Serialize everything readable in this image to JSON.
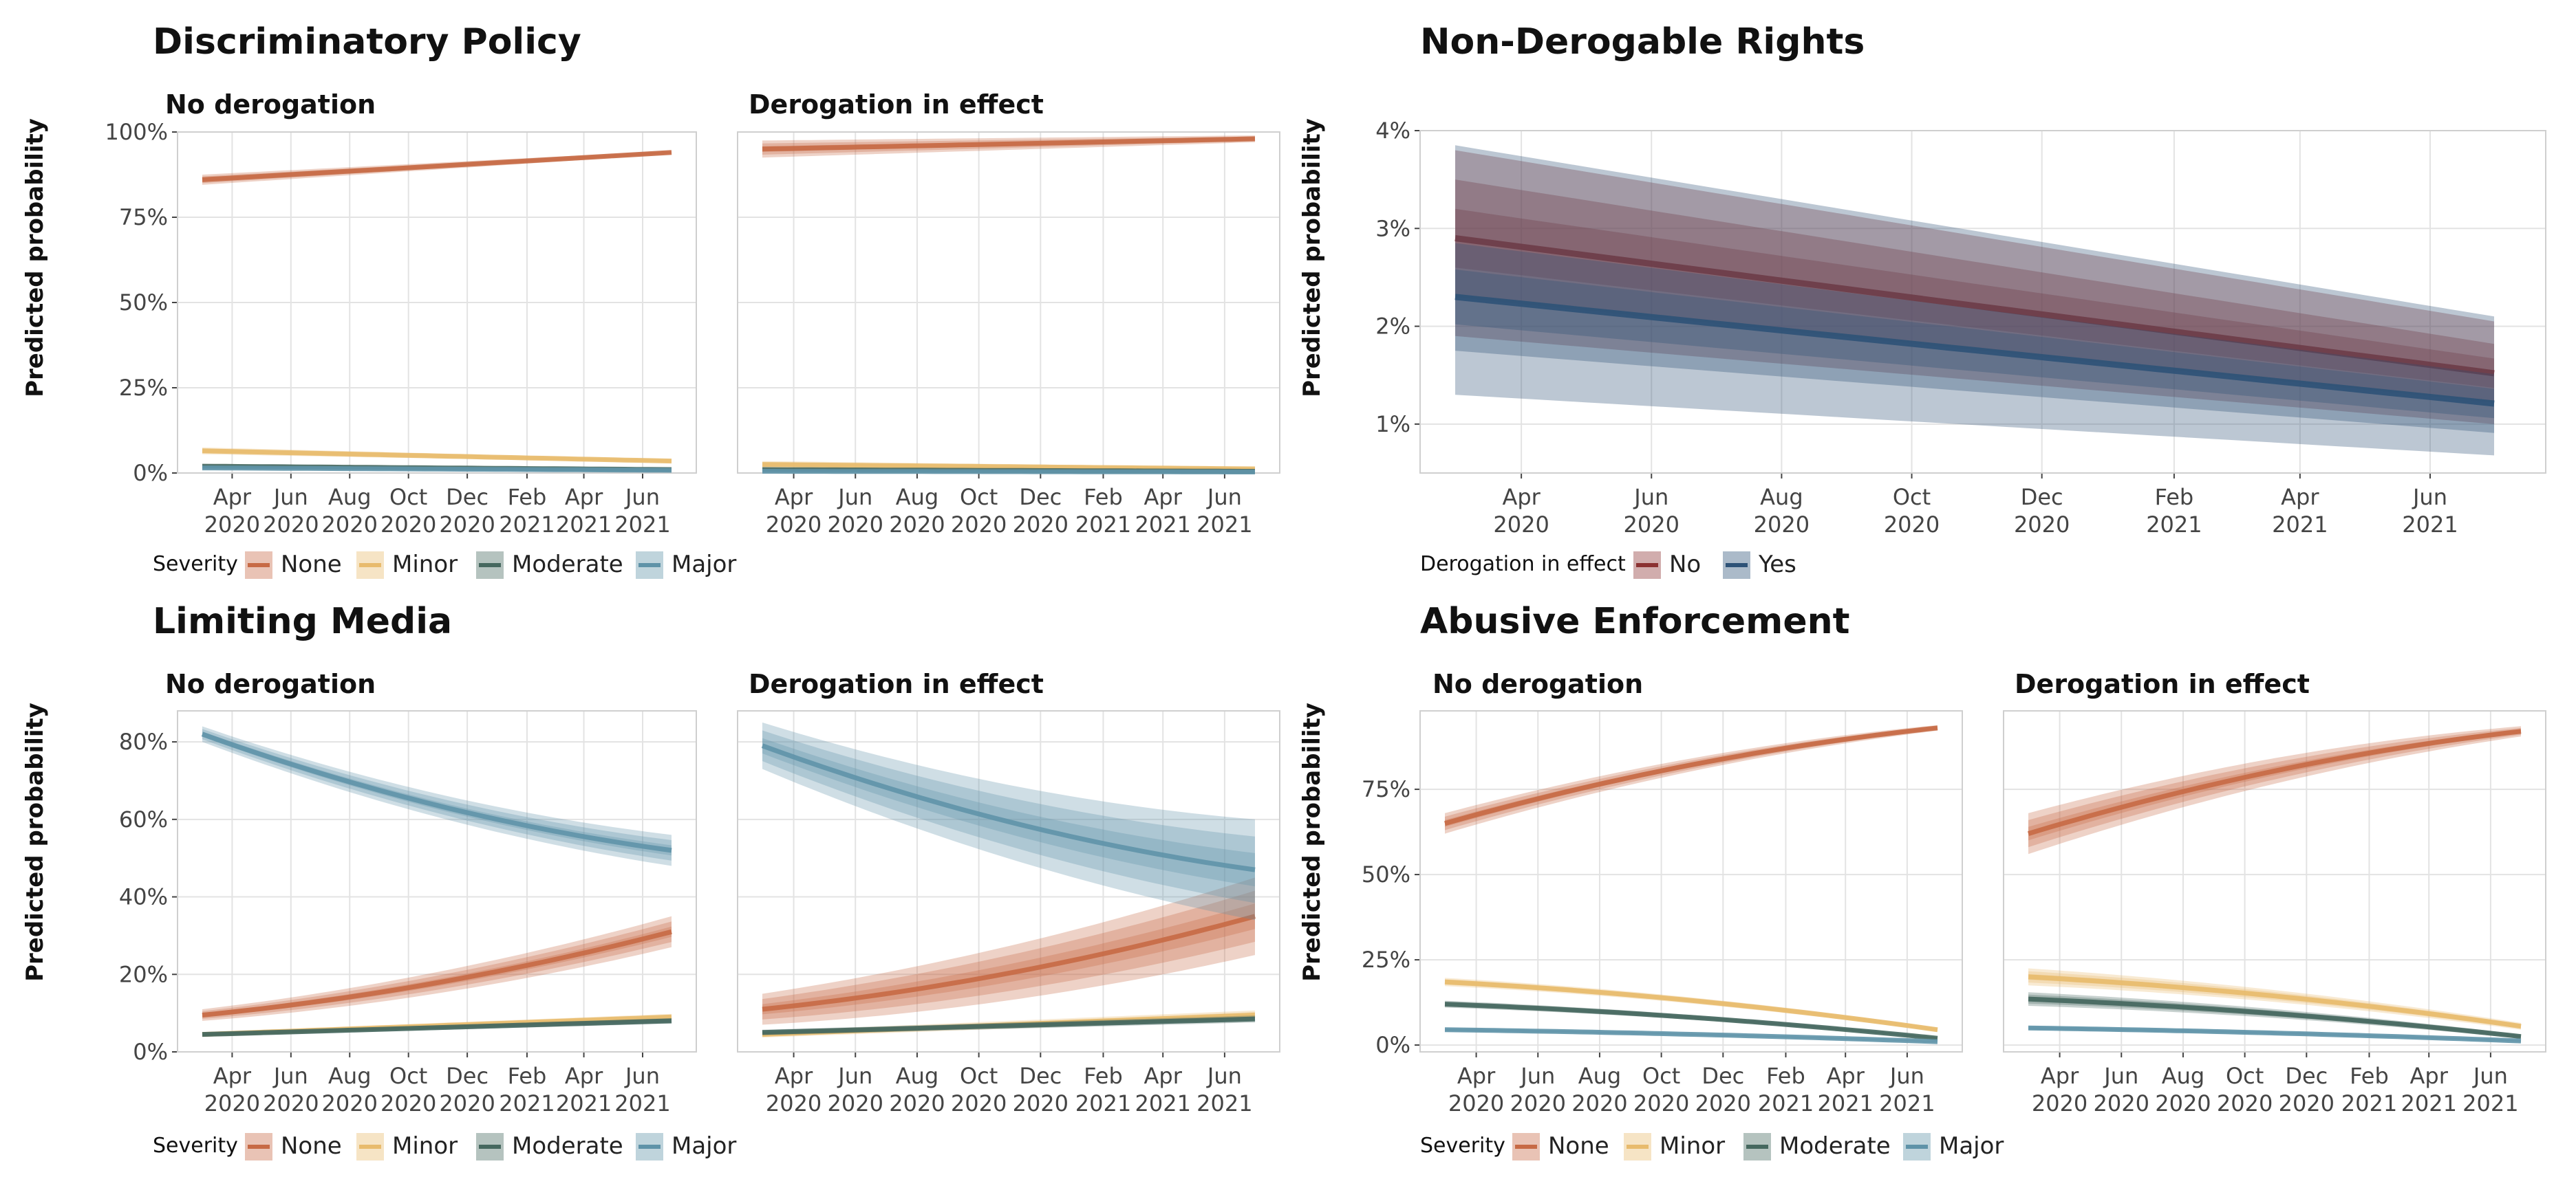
{
  "colors": {
    "None": "#c76a45",
    "Minor": "#e8bb6d",
    "Moderate": "#46685f",
    "Major": "#5f93a8",
    "No": "#8b3232",
    "Yes": "#2e5277"
  },
  "x_ticks": [
    {
      "month": "Apr",
      "year": "2020"
    },
    {
      "month": "Jun",
      "year": "2020"
    },
    {
      "month": "Aug",
      "year": "2020"
    },
    {
      "month": "Oct",
      "year": "2020"
    },
    {
      "month": "Dec",
      "year": "2020"
    },
    {
      "month": "Feb",
      "year": "2021"
    },
    {
      "month": "Apr",
      "year": "2021"
    },
    {
      "month": "Jun",
      "year": "2021"
    }
  ],
  "severity_legend": {
    "title": "Severity",
    "items": [
      "None",
      "Minor",
      "Moderate",
      "Major"
    ]
  },
  "derogation_legend": {
    "title": "Derogation in effect",
    "items": [
      "No",
      "Yes"
    ]
  },
  "ylabel": "Predicted probability",
  "chart_data": [
    {
      "type": "line",
      "title": "Discriminatory Policy",
      "ylabel": "Predicted probability",
      "x_range": [
        "2020-03-01",
        "2021-07-01"
      ],
      "ylim": [
        0,
        1
      ],
      "yticks": [
        0,
        0.25,
        0.5,
        0.75,
        1
      ],
      "ytick_labels": [
        "0%",
        "25%",
        "50%",
        "75%",
        "100%"
      ],
      "facets": [
        {
          "label": "No derogation",
          "series": [
            {
              "name": "None",
              "x": [
                "2020-03-01",
                "2021-07-01"
              ],
              "y": [
                0.86,
                0.94
              ],
              "band": [
                0.015,
                0.005
              ]
            },
            {
              "name": "Minor",
              "x": [
                "2020-03-01",
                "2021-07-01"
              ],
              "y": [
                0.065,
                0.035
              ],
              "band": [
                0.01,
                0.005
              ]
            },
            {
              "name": "Moderate",
              "x": [
                "2020-03-01",
                "2021-07-01"
              ],
              "y": [
                0.02,
                0.01
              ],
              "band": [
                0.005,
                0.004
              ]
            },
            {
              "name": "Major",
              "x": [
                "2020-03-01",
                "2021-07-01"
              ],
              "y": [
                0.015,
                0.008
              ],
              "band": [
                0.004,
                0.003
              ]
            }
          ]
        },
        {
          "label": "Derogation in effect",
          "series": [
            {
              "name": "None",
              "x": [
                "2020-03-01",
                "2021-07-01"
              ],
              "y": [
                0.95,
                0.98
              ],
              "band": [
                0.025,
                0.01
              ]
            },
            {
              "name": "Minor",
              "x": [
                "2020-03-01",
                "2021-07-01"
              ],
              "y": [
                0.025,
                0.012
              ],
              "band": [
                0.01,
                0.005
              ]
            },
            {
              "name": "Moderate",
              "x": [
                "2020-03-01",
                "2021-07-01"
              ],
              "y": [
                0.01,
                0.005
              ],
              "band": [
                0.005,
                0.003
              ]
            },
            {
              "name": "Major",
              "x": [
                "2020-03-01",
                "2021-07-01"
              ],
              "y": [
                0.005,
                0.003
              ],
              "band": [
                0.003,
                0.002
              ]
            }
          ]
        }
      ],
      "legend": "Severity"
    },
    {
      "type": "line",
      "title": "Non-Derogable Rights",
      "ylabel": "Predicted probability",
      "x_range": [
        "2020-03-01",
        "2021-07-01"
      ],
      "ylim": [
        0.005,
        0.04
      ],
      "yticks": [
        0.01,
        0.02,
        0.03,
        0.04
      ],
      "ytick_labels": [
        "1%",
        "2%",
        "3%",
        "4%"
      ],
      "facets": [
        {
          "label": "",
          "series": [
            {
              "name": "No",
              "x": [
                "2020-03-01",
                "2021-07-01"
              ],
              "y": [
                0.029,
                0.0152
              ],
              "band_outer_lo": [
                0.019,
                0.01
              ],
              "band_outer_hi": [
                0.038,
                0.0205
              ],
              "band_mid": [
                0.006,
                0.003
              ],
              "band_in": [
                0.003,
                0.0015
              ]
            },
            {
              "name": "Yes",
              "x": [
                "2020-03-01",
                "2021-07-01"
              ],
              "y": [
                0.023,
                0.0121
              ],
              "band_outer_lo": [
                0.013,
                0.0068
              ],
              "band_outer_hi": [
                0.0385,
                0.021
              ],
              "band_mid": [
                0.0055,
                0.003
              ],
              "band_in": [
                0.0028,
                0.0015
              ]
            }
          ]
        }
      ],
      "legend": "Derogation in effect"
    },
    {
      "type": "line",
      "title": "Limiting Media",
      "ylabel": "Predicted probability",
      "x_range": [
        "2020-03-01",
        "2021-07-01"
      ],
      "ylim": [
        0,
        0.88
      ],
      "yticks": [
        0,
        0.2,
        0.4,
        0.6,
        0.8
      ],
      "ytick_labels": [
        "0%",
        "20%",
        "40%",
        "60%",
        "80%"
      ],
      "facets": [
        {
          "label": "No derogation",
          "series": [
            {
              "name": "None",
              "x": [
                "2020-03-01",
                "2021-07-01"
              ],
              "y": [
                0.095,
                0.31
              ],
              "band": [
                0.015,
                0.04
              ],
              "curve": "up"
            },
            {
              "name": "Minor",
              "x": [
                "2020-03-01",
                "2021-07-01"
              ],
              "y": [
                0.045,
                0.09
              ],
              "band": [
                0.006,
                0.008
              ]
            },
            {
              "name": "Moderate",
              "x": [
                "2020-03-01",
                "2021-07-01"
              ],
              "y": [
                0.045,
                0.08
              ],
              "band": [
                0.005,
                0.007
              ]
            },
            {
              "name": "Major",
              "x": [
                "2020-03-01",
                "2021-07-01"
              ],
              "y": [
                0.82,
                0.52
              ],
              "band": [
                0.02,
                0.04
              ],
              "curve": "down"
            }
          ]
        },
        {
          "label": "Derogation in effect",
          "series": [
            {
              "name": "None",
              "x": [
                "2020-03-01",
                "2021-07-01"
              ],
              "y": [
                0.11,
                0.35
              ],
              "band": [
                0.04,
                0.1
              ],
              "curve": "up"
            },
            {
              "name": "Minor",
              "x": [
                "2020-03-01",
                "2021-07-01"
              ],
              "y": [
                0.045,
                0.095
              ],
              "band": [
                0.008,
                0.012
              ]
            },
            {
              "name": "Moderate",
              "x": [
                "2020-03-01",
                "2021-07-01"
              ],
              "y": [
                0.05,
                0.085
              ],
              "band": [
                0.007,
                0.009
              ]
            },
            {
              "name": "Major",
              "x": [
                "2020-03-01",
                "2021-07-01"
              ],
              "y": [
                0.79,
                0.47
              ],
              "band": [
                0.06,
                0.13
              ],
              "curve": "down"
            }
          ]
        }
      ],
      "legend": "Severity"
    },
    {
      "type": "line",
      "title": "Abusive Enforcement",
      "ylabel": "Predicted probability",
      "x_range": [
        "2020-03-01",
        "2021-07-01"
      ],
      "ylim": [
        -0.02,
        0.98
      ],
      "yticks": [
        0,
        0.25,
        0.5,
        0.75
      ],
      "ytick_labels": [
        "0%",
        "25%",
        "50%",
        "75%"
      ],
      "facets": [
        {
          "label": "No derogation",
          "series": [
            {
              "name": "None",
              "x": [
                "2020-03-01",
                "2021-07-01"
              ],
              "y": [
                0.65,
                0.93
              ],
              "band": [
                0.03,
                0.008
              ],
              "curve": "down"
            },
            {
              "name": "Minor",
              "x": [
                "2020-03-01",
                "2021-07-01"
              ],
              "y": [
                0.185,
                0.045
              ],
              "band": [
                0.012,
                0.006
              ],
              "curve": "up"
            },
            {
              "name": "Moderate",
              "x": [
                "2020-03-01",
                "2021-07-01"
              ],
              "y": [
                0.12,
                0.02
              ],
              "band": [
                0.01,
                0.004
              ],
              "curve": "up"
            },
            {
              "name": "Major",
              "x": [
                "2020-03-01",
                "2021-07-01"
              ],
              "y": [
                0.045,
                0.01
              ],
              "band": [
                0.005,
                0.002
              ],
              "curve": "up"
            }
          ]
        },
        {
          "label": "Derogation in effect",
          "series": [
            {
              "name": "None",
              "x": [
                "2020-03-01",
                "2021-07-01"
              ],
              "y": [
                0.62,
                0.92
              ],
              "band": [
                0.06,
                0.015
              ],
              "curve": "down"
            },
            {
              "name": "Minor",
              "x": [
                "2020-03-01",
                "2021-07-01"
              ],
              "y": [
                0.2,
                0.055
              ],
              "band": [
                0.025,
                0.01
              ],
              "curve": "up"
            },
            {
              "name": "Moderate",
              "x": [
                "2020-03-01",
                "2021-07-01"
              ],
              "y": [
                0.135,
                0.025
              ],
              "band": [
                0.02,
                0.006
              ],
              "curve": "up"
            },
            {
              "name": "Major",
              "x": [
                "2020-03-01",
                "2021-07-01"
              ],
              "y": [
                0.05,
                0.012
              ],
              "band": [
                0.006,
                0.003
              ],
              "curve": "up"
            }
          ]
        }
      ],
      "legend": "Severity"
    }
  ]
}
